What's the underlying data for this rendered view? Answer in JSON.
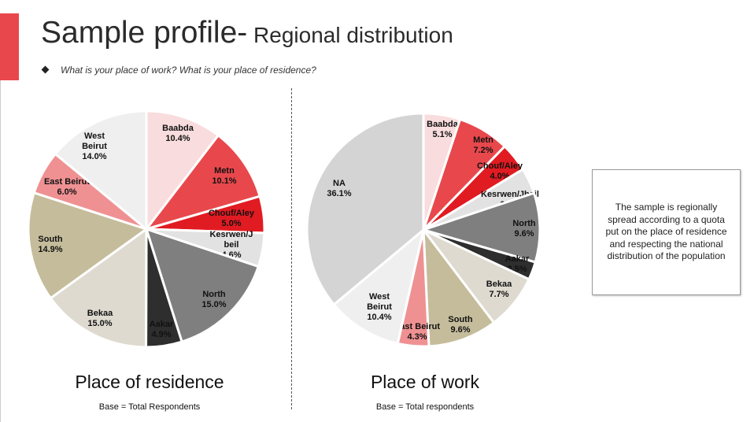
{
  "slide": {
    "title_main": "Sample profile-",
    "title_sub": " Regional distribution",
    "question": "What is your place of work? What is your place of residence?",
    "note": "The sample is regionally spread according to a quota put on the place of residence and respecting the national distribution of the population",
    "accent_color": "#e8484c"
  },
  "chart_data": [
    {
      "type": "pie",
      "title": "Place of residence",
      "base_note": "Base = Total Respondents",
      "slices": [
        {
          "label": "Baabda",
          "value": 10.4,
          "value_label": "10.4%",
          "color": "#f9dcdd"
        },
        {
          "label": "Metn",
          "value": 10.1,
          "value_label": "10.1%",
          "color": "#e8484c"
        },
        {
          "label": "Chouf/Aley",
          "value": 5.0,
          "value_label": "5.0%",
          "color": "#e11b22"
        },
        {
          "label": "Kesrwen/J beil",
          "value": 4.6,
          "value_label": "4.6%",
          "color": "#e2e2e2"
        },
        {
          "label": "North",
          "value": 15.0,
          "value_label": "15.0%",
          "color": "#7f7f7f"
        },
        {
          "label": "Aakar",
          "value": 4.9,
          "value_label": "4.9%",
          "color": "#2e2e2e"
        },
        {
          "label": "Bekaa",
          "value": 15.0,
          "value_label": "15.0%",
          "color": "#dedad0"
        },
        {
          "label": "South",
          "value": 14.9,
          "value_label": "14.9%",
          "color": "#c5bc9b"
        },
        {
          "label": "East Beirut",
          "value": 6.0,
          "value_label": "6.0%",
          "color": "#ef9192"
        },
        {
          "label": "West Beirut",
          "value": 14.0,
          "value_label": "14.0%",
          "color": "#efefef"
        }
      ]
    },
    {
      "type": "pie",
      "title": "Place of work",
      "base_note": "Base = Total respondents",
      "slices": [
        {
          "label": "Baabda",
          "value": 5.1,
          "value_label": "5.1%",
          "color": "#f9dcdd"
        },
        {
          "label": "Metn",
          "value": 7.2,
          "value_label": "7.2%",
          "color": "#e8484c"
        },
        {
          "label": "Chouf/Aley",
          "value": 4.0,
          "value_label": "4.0%",
          "color": "#e11b22"
        },
        {
          "label": "Kesrwen/Jbeil",
          "value": 3.6,
          "value_label": "3.6%",
          "color": "#e2e2e2"
        },
        {
          "label": "North",
          "value": 9.6,
          "value_label": "9.6%",
          "color": "#7f7f7f"
        },
        {
          "label": "Aakar",
          "value": 2.5,
          "value_label": "2.5%",
          "color": "#2e2e2e"
        },
        {
          "label": "Bekaa",
          "value": 7.7,
          "value_label": "7.7%",
          "color": "#dedad0"
        },
        {
          "label": "South",
          "value": 9.6,
          "value_label": "9.6%",
          "color": "#c5bc9b"
        },
        {
          "label": "East Beirut",
          "value": 4.3,
          "value_label": "4.3%",
          "color": "#ef9192"
        },
        {
          "label": "West Beirut",
          "value": 10.4,
          "value_label": "10.4%",
          "color": "#efefef"
        },
        {
          "label": "NA",
          "value": 36.1,
          "value_label": "36.1%",
          "color": "#d4d4d4"
        }
      ]
    }
  ]
}
